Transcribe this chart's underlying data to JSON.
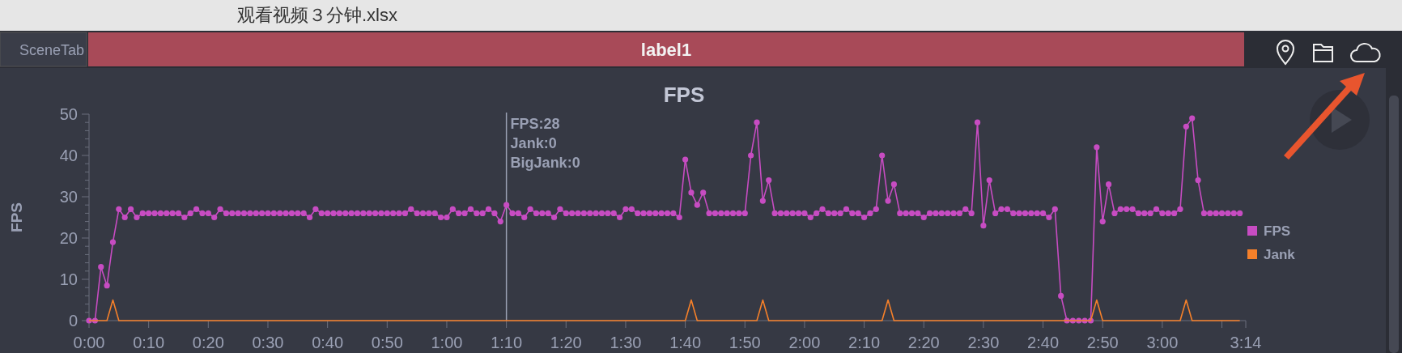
{
  "chart_data": {
    "type": "line",
    "title": "FPS",
    "ylabel": "FPS",
    "annotations": [
      "观看视频３分钟.xlsx",
      "SceneTab",
      "label1",
      "FPS:28",
      "Jank:0",
      "BigJank:0"
    ],
    "x": [
      0,
      1,
      2,
      3,
      4,
      5,
      6,
      7,
      8,
      9,
      10,
      11,
      12,
      13,
      14,
      15,
      16,
      17,
      18,
      19,
      20,
      21,
      22,
      23,
      24,
      25,
      26,
      27,
      28,
      29,
      30,
      31,
      32,
      33,
      34,
      35,
      36,
      37,
      38,
      39,
      40,
      41,
      42,
      43,
      44,
      45,
      46,
      47,
      48,
      49,
      50,
      51,
      52,
      53,
      54,
      55,
      56,
      57,
      58,
      59,
      60,
      61,
      62,
      63,
      64,
      65,
      66,
      67,
      68,
      69,
      70,
      71,
      72,
      73,
      74,
      75,
      76,
      77,
      78,
      79,
      80,
      81,
      82,
      83,
      84,
      85,
      86,
      87,
      88,
      89,
      90,
      91,
      92,
      93,
      94,
      95,
      96,
      97,
      98,
      99,
      100,
      101,
      102,
      103,
      104,
      105,
      106,
      107,
      108,
      109,
      110,
      111,
      112,
      113,
      114,
      115,
      116,
      117,
      118,
      119,
      120,
      121,
      122,
      123,
      124,
      125,
      126,
      127,
      128,
      129,
      130,
      131,
      132,
      133,
      134,
      135,
      136,
      137,
      138,
      139,
      140,
      141,
      142,
      143,
      144,
      145,
      146,
      147,
      148,
      149,
      150,
      151,
      152,
      153,
      154,
      155,
      156,
      157,
      158,
      159,
      160,
      161,
      162,
      163,
      164,
      165,
      166,
      167,
      168,
      169,
      170,
      171,
      172,
      173,
      174,
      175,
      176,
      177,
      178,
      179,
      180,
      181,
      182,
      183,
      184,
      185,
      186,
      187,
      188,
      189,
      190,
      191,
      192,
      193
    ],
    "series": [
      {
        "name": "FPS",
        "color": "#c74cc2",
        "marker": "circle",
        "values": [
          0,
          0,
          13,
          8.5,
          19,
          27,
          25,
          27,
          25,
          26,
          26,
          26,
          26,
          26,
          26,
          26,
          25,
          26,
          27,
          26,
          26,
          25,
          27,
          26,
          26,
          26,
          26,
          26,
          26,
          26,
          26,
          26,
          26,
          26,
          26,
          26,
          26,
          25,
          27,
          26,
          26,
          26,
          26,
          26,
          26,
          26,
          26,
          26,
          26,
          26,
          26,
          26,
          26,
          26,
          27,
          26,
          26,
          26,
          26,
          25,
          25,
          27,
          26,
          26,
          27,
          26,
          26,
          27,
          26,
          24,
          28,
          26,
          26,
          25,
          27,
          26,
          26,
          26,
          25,
          27,
          26,
          26,
          26,
          26,
          26,
          26,
          26,
          26,
          26,
          25,
          27,
          27,
          26,
          26,
          26,
          26,
          26,
          26,
          26,
          25,
          39,
          31,
          28,
          31,
          26,
          26,
          26,
          26,
          26,
          26,
          26,
          40,
          48,
          29,
          34,
          26,
          26,
          26,
          26,
          26,
          26,
          25,
          26,
          27,
          26,
          26,
          26,
          27,
          26,
          26,
          25,
          26,
          27,
          40,
          29,
          33,
          26,
          26,
          26,
          26,
          25,
          26,
          26,
          26,
          26,
          26,
          26,
          27,
          26,
          48,
          23,
          34,
          26,
          27,
          27,
          26,
          26,
          26,
          26,
          26,
          26,
          25,
          27,
          6,
          0,
          0,
          0,
          0,
          0,
          42,
          24,
          33,
          26,
          27,
          27,
          27,
          26,
          26,
          26,
          27,
          26,
          26,
          26,
          27,
          47,
          49,
          34,
          26,
          26,
          26,
          26,
          26,
          26,
          26
        ]
      },
      {
        "name": "Jank",
        "color": "#f5802a",
        "marker": "none",
        "values": [
          0,
          0,
          0,
          0,
          5,
          0,
          0,
          0,
          0,
          0,
          0,
          0,
          0,
          0,
          0,
          0,
          0,
          0,
          0,
          0,
          0,
          0,
          0,
          0,
          0,
          0,
          0,
          0,
          0,
          0,
          0,
          0,
          0,
          0,
          0,
          0,
          0,
          0,
          0,
          0,
          0,
          0,
          0,
          0,
          0,
          0,
          0,
          0,
          0,
          0,
          0,
          0,
          0,
          0,
          0,
          0,
          0,
          0,
          0,
          0,
          0,
          0,
          0,
          0,
          0,
          0,
          0,
          0,
          0,
          0,
          0,
          0,
          0,
          0,
          0,
          0,
          0,
          0,
          0,
          0,
          0,
          0,
          0,
          0,
          0,
          0,
          0,
          0,
          0,
          0,
          0,
          0,
          0,
          0,
          0,
          0,
          0,
          0,
          0,
          0,
          0,
          5,
          0,
          0,
          0,
          0,
          0,
          0,
          0,
          0,
          0,
          0,
          0,
          5,
          0,
          0,
          0,
          0,
          0,
          0,
          0,
          0,
          0,
          0,
          0,
          0,
          0,
          0,
          0,
          0,
          0,
          0,
          0,
          0,
          5,
          0,
          0,
          0,
          0,
          0,
          0,
          0,
          0,
          0,
          0,
          0,
          0,
          0,
          0,
          0,
          0,
          0,
          0,
          0,
          0,
          0,
          0,
          0,
          0,
          0,
          0,
          0,
          0,
          0,
          0,
          0,
          0,
          0,
          0,
          5,
          0,
          0,
          0,
          0,
          0,
          0,
          0,
          0,
          0,
          0,
          0,
          0,
          0,
          0,
          5,
          0,
          0,
          0,
          0,
          0,
          0,
          0,
          0,
          0
        ]
      }
    ],
    "xlim": [
      0,
      194
    ],
    "xticks": [
      {
        "value": 0,
        "label": "0:00"
      },
      {
        "value": 10,
        "label": "0:10"
      },
      {
        "value": 20,
        "label": "0:20"
      },
      {
        "value": 30,
        "label": "0:30"
      },
      {
        "value": 40,
        "label": "0:40"
      },
      {
        "value": 50,
        "label": "0:50"
      },
      {
        "value": 60,
        "label": "1:00"
      },
      {
        "value": 70,
        "label": "1:10"
      },
      {
        "value": 80,
        "label": "1:20"
      },
      {
        "value": 90,
        "label": "1:30"
      },
      {
        "value": 100,
        "label": "1:40"
      },
      {
        "value": 110,
        "label": "1:50"
      },
      {
        "value": 120,
        "label": "2:00"
      },
      {
        "value": 130,
        "label": "2:10"
      },
      {
        "value": 140,
        "label": "2:20"
      },
      {
        "value": 150,
        "label": "2:30"
      },
      {
        "value": 160,
        "label": "2:40"
      },
      {
        "value": 170,
        "label": "2:50"
      },
      {
        "value": 180,
        "label": "3:00"
      },
      {
        "value": 190,
        "label": null
      },
      {
        "value": 194,
        "label": "3:14"
      }
    ],
    "ylim": [
      0,
      50
    ],
    "yticks": [
      0,
      {
        "value": 2,
        "label": null
      },
      {
        "value": 4,
        "label": null
      },
      {
        "value": 6,
        "label": null
      },
      {
        "value": 8,
        "label": null
      },
      10,
      {
        "value": 12,
        "label": null
      },
      {
        "value": 14,
        "label": null
      },
      {
        "value": 16,
        "label": null
      },
      {
        "value": 18,
        "label": null
      },
      20,
      {
        "value": 22,
        "label": null
      },
      {
        "value": 24,
        "label": null
      },
      {
        "value": 26,
        "label": null
      },
      {
        "value": 28,
        "label": null
      },
      30,
      {
        "value": 32,
        "label": null
      },
      {
        "value": 34,
        "label": null
      },
      {
        "value": 36,
        "label": null
      },
      {
        "value": 38,
        "label": null
      },
      40,
      {
        "value": 42,
        "label": null
      },
      {
        "value": 44,
        "label": null
      },
      {
        "value": 46,
        "label": null
      },
      {
        "value": 48,
        "label": null
      },
      50
    ],
    "ref_lines": [
      {
        "axis": "x",
        "value": 70,
        "color": "#9aa0b4"
      }
    ],
    "legend": "right"
  }
}
